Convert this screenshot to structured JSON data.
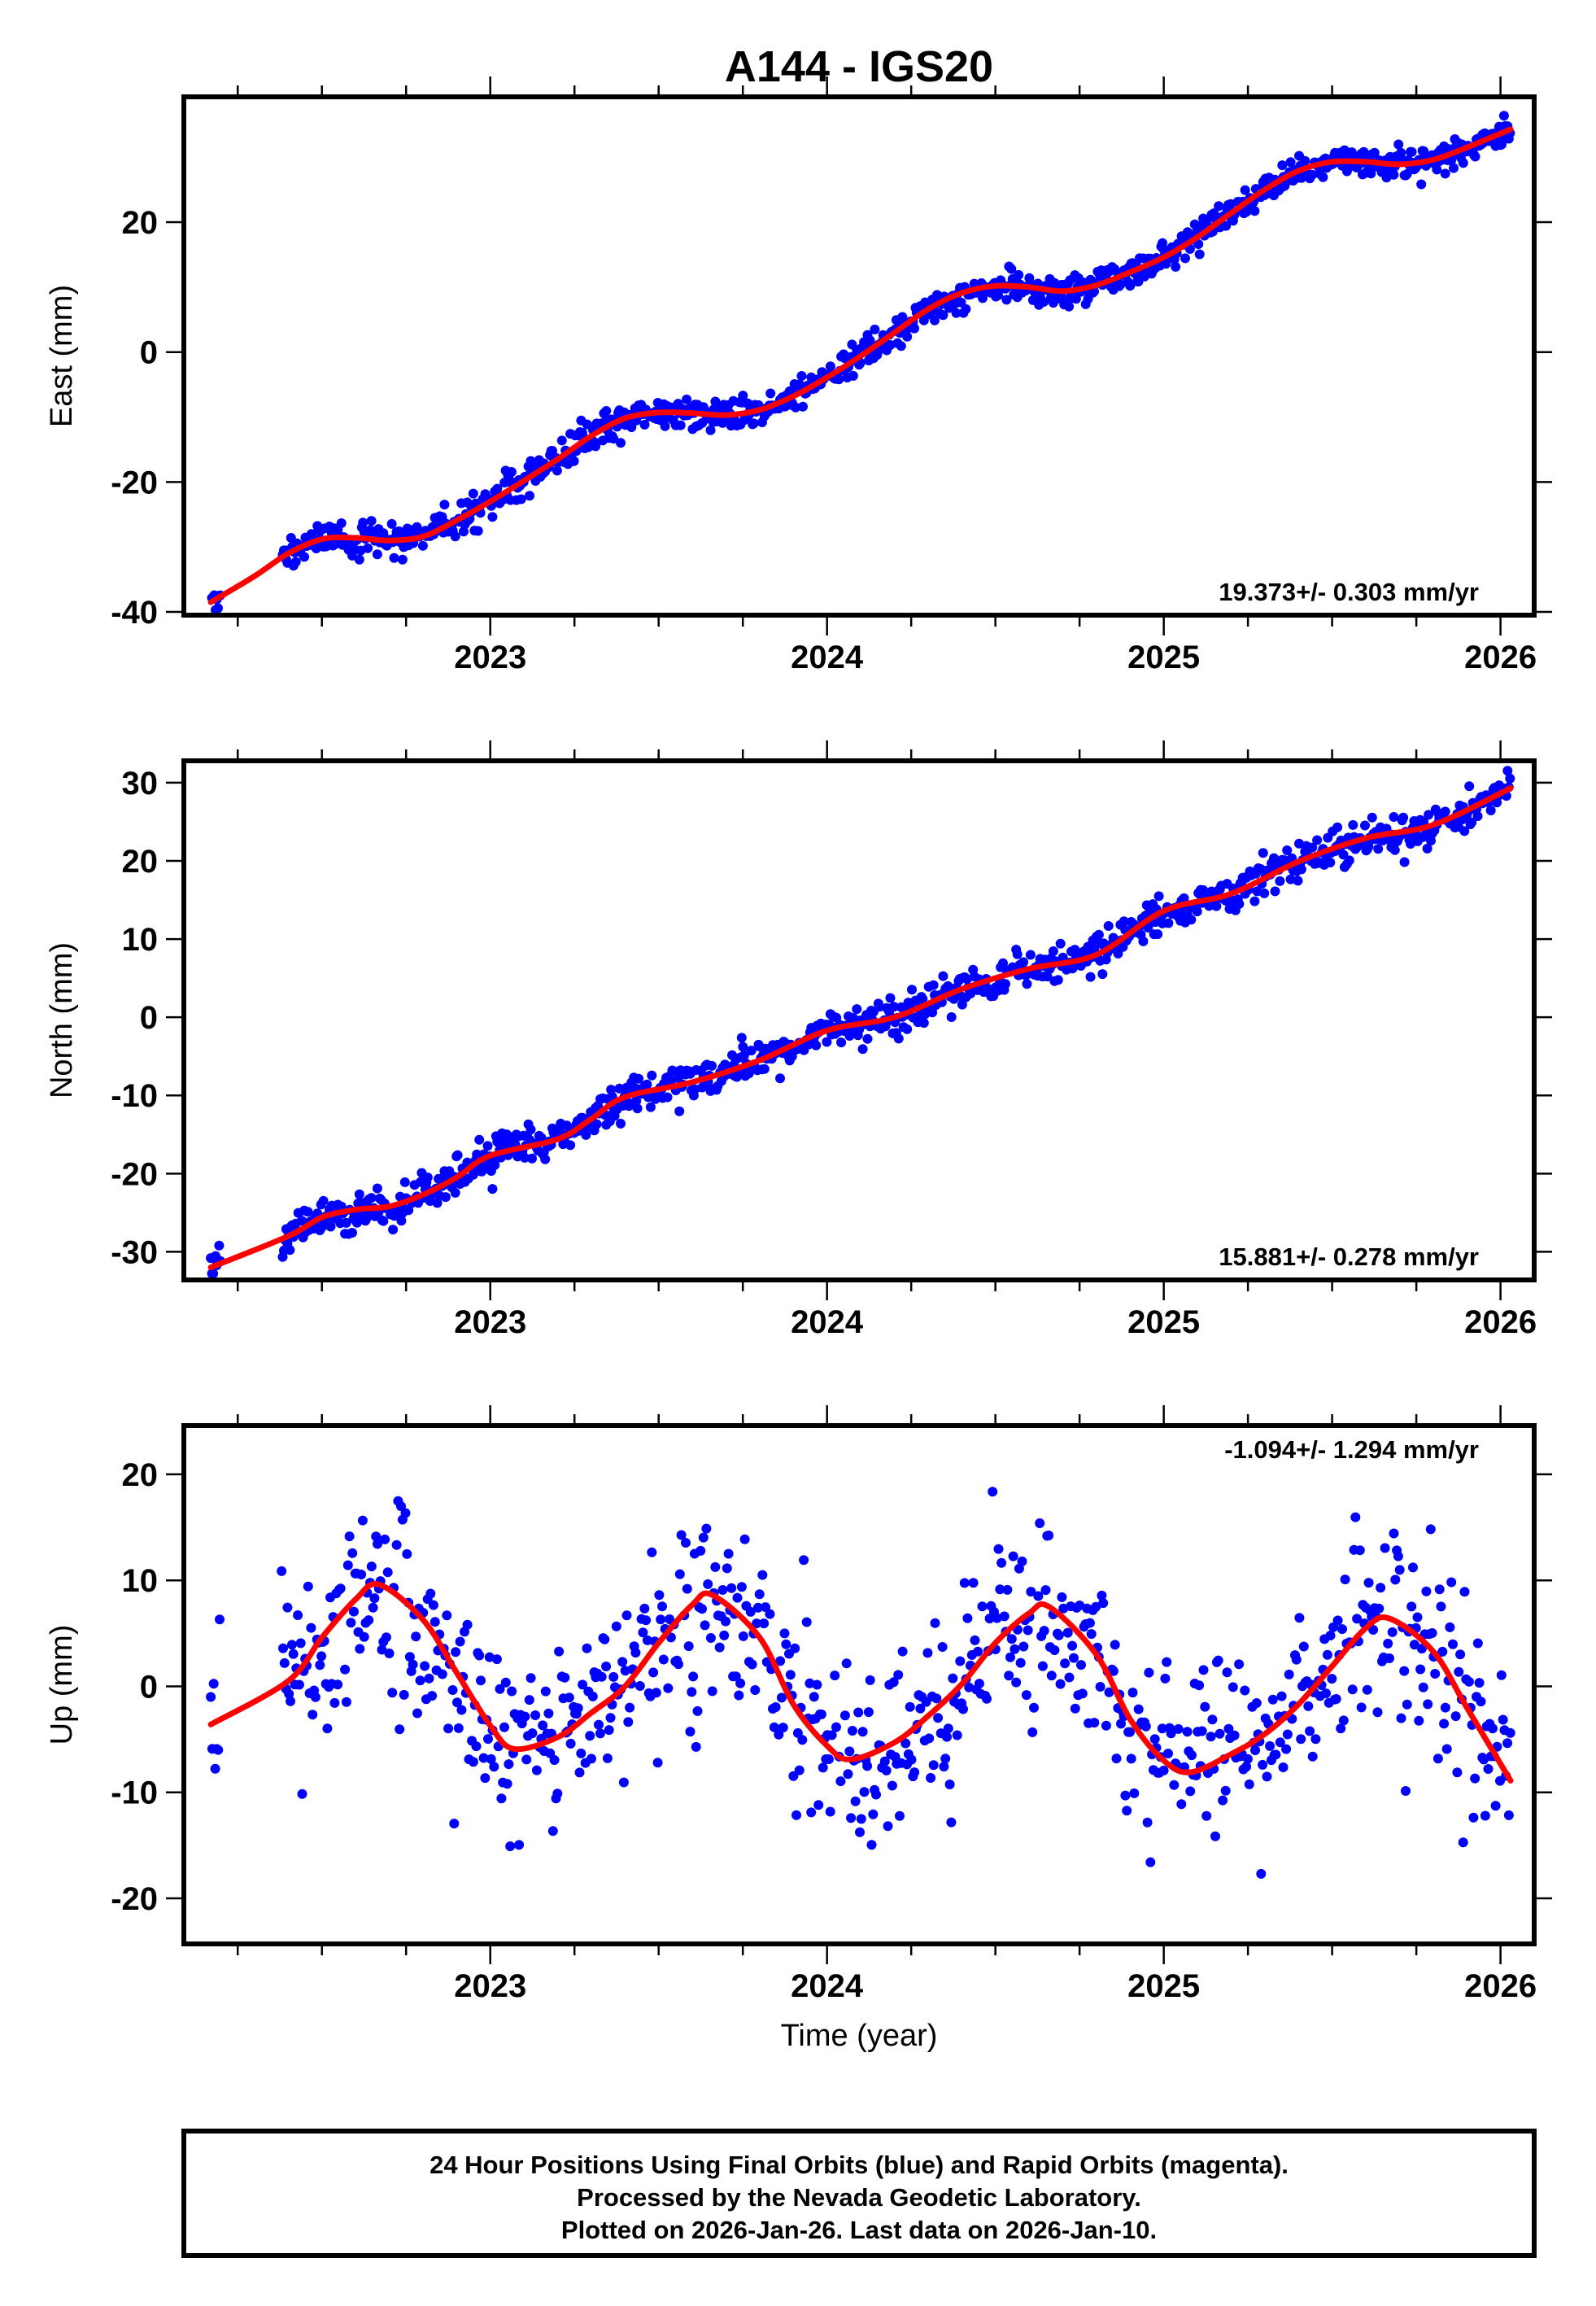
{
  "title": "A144 - IGS20",
  "colors": {
    "points": "#0000ff",
    "fit": "#ff0000",
    "frame": "#000000"
  },
  "chart_data": [
    {
      "type": "scatter",
      "panel": "east",
      "ylabel": "East (mm)",
      "xlim": [
        2022.09,
        2026.1
      ],
      "ylim": [
        -40.5,
        39.3
      ],
      "x_ticks": [
        2023,
        2024,
        2025,
        2026
      ],
      "x_minor_step": 0.25,
      "y_ticks": [
        -40,
        -20,
        0,
        20
      ],
      "rate_label": "19.373+/- 0.303 mm/yr",
      "scatter_sd": 1.2,
      "data_start": 2022.17,
      "data_gap": [
        2022.2,
        2022.38
      ],
      "data_end": 2026.03,
      "fit": {
        "x": [
          2022.17,
          2022.3,
          2022.4,
          2022.5,
          2022.6,
          2022.7,
          2022.8,
          2022.9,
          2023.0,
          2023.1,
          2023.2,
          2023.3,
          2023.4,
          2023.5,
          2023.6,
          2023.7,
          2023.8,
          2023.9,
          2024.0,
          2024.1,
          2024.2,
          2024.3,
          2024.4,
          2024.5,
          2024.6,
          2024.7,
          2024.8,
          2024.9,
          2025.0,
          2025.1,
          2025.2,
          2025.3,
          2025.4,
          2025.5,
          2025.6,
          2025.7,
          2025.8,
          2025.9,
          2026.03
        ],
        "y": [
          -38.5,
          -34.5,
          -31.0,
          -28.8,
          -28.6,
          -29.0,
          -28.4,
          -25.9,
          -23.0,
          -19.8,
          -16.5,
          -12.9,
          -10.2,
          -9.3,
          -9.4,
          -9.7,
          -8.9,
          -6.8,
          -3.9,
          -0.6,
          3.0,
          6.6,
          9.1,
          10.2,
          10.0,
          9.4,
          10.3,
          12.3,
          14.6,
          17.7,
          21.4,
          25.0,
          27.9,
          29.3,
          29.3,
          28.9,
          29.6,
          31.5,
          34.3
        ]
      }
    },
    {
      "type": "scatter",
      "panel": "north",
      "ylabel": "North (mm)",
      "xlim": [
        2022.09,
        2026.1
      ],
      "ylim": [
        -33.6,
        32.8
      ],
      "x_ticks": [
        2023,
        2024,
        2025,
        2026
      ],
      "x_minor_step": 0.25,
      "y_ticks": [
        -30,
        -20,
        -10,
        0,
        10,
        20,
        30
      ],
      "rate_label": "15.881+/- 0.278 mm/yr",
      "scatter_sd": 1.2,
      "data_start": 2022.17,
      "data_gap": [
        2022.2,
        2022.38
      ],
      "data_end": 2026.03,
      "fit": {
        "x": [
          2022.17,
          2022.4,
          2022.5,
          2022.6,
          2022.7,
          2022.8,
          2022.9,
          2023.0,
          2023.2,
          2023.3,
          2023.4,
          2023.6,
          2023.8,
          2024.0,
          2024.2,
          2024.4,
          2024.6,
          2024.8,
          2025.0,
          2025.2,
          2025.4,
          2025.6,
          2025.8,
          2026.03
        ],
        "y": [
          -32.0,
          -28.0,
          -25.6,
          -24.6,
          -24.2,
          -22.7,
          -20.5,
          -17.7,
          -15.6,
          -13.0,
          -10.2,
          -8.3,
          -5.5,
          -1.7,
          0.0,
          3.6,
          6.2,
          8.0,
          13.6,
          15.8,
          19.9,
          22.9,
          24.6,
          29.3
        ]
      }
    },
    {
      "type": "scatter",
      "panel": "up",
      "ylabel": "Up (mm)",
      "xlabel": "Time (year)",
      "xlim": [
        2022.09,
        2026.1
      ],
      "ylim": [
        -24.3,
        24.6
      ],
      "x_ticks": [
        2023,
        2024,
        2025,
        2026
      ],
      "x_minor_step": 0.25,
      "y_ticks": [
        -20,
        -10,
        0,
        10,
        20
      ],
      "rate_label": "-1.094+/- 1.294 mm/yr",
      "scatter_sd": 4.6,
      "data_start": 2022.17,
      "data_gap": [
        2022.2,
        2022.38
      ],
      "data_end": 2026.03,
      "fit": {
        "x": [
          2022.17,
          2022.4,
          2022.5,
          2022.6,
          2022.67,
          2022.8,
          2022.9,
          2023.0,
          2023.07,
          2023.2,
          2023.3,
          2023.4,
          2023.5,
          2023.6,
          2023.66,
          2023.8,
          2023.9,
          2024.0,
          2024.07,
          2024.2,
          2024.3,
          2024.4,
          2024.5,
          2024.6,
          2024.66,
          2024.8,
          2024.9,
          2025.0,
          2025.08,
          2025.2,
          2025.3,
          2025.4,
          2025.5,
          2025.6,
          2025.67,
          2025.8,
          2025.9,
          2026.03
        ],
        "y": [
          -3.6,
          0.5,
          4.6,
          8.2,
          9.6,
          6.3,
          1.3,
          -3.7,
          -5.9,
          -4.8,
          -2.5,
          0.0,
          4.1,
          7.7,
          8.6,
          4.6,
          -1.7,
          -5.6,
          -6.9,
          -5.3,
          -2.8,
          0.2,
          4.1,
          6.9,
          7.5,
          3.0,
          -3.1,
          -7.0,
          -8.1,
          -6.4,
          -4.5,
          -1.7,
          1.9,
          5.5,
          6.4,
          3.3,
          -2.0,
          -8.9
        ]
      }
    }
  ],
  "footer": {
    "line1": "24 Hour Positions Using Final Orbits (blue) and Rapid Orbits (magenta).",
    "line2": "Processed by the Nevada Geodetic Laboratory.",
    "line3": "Plotted on 2026-Jan-26. Last data on 2026-Jan-10."
  }
}
